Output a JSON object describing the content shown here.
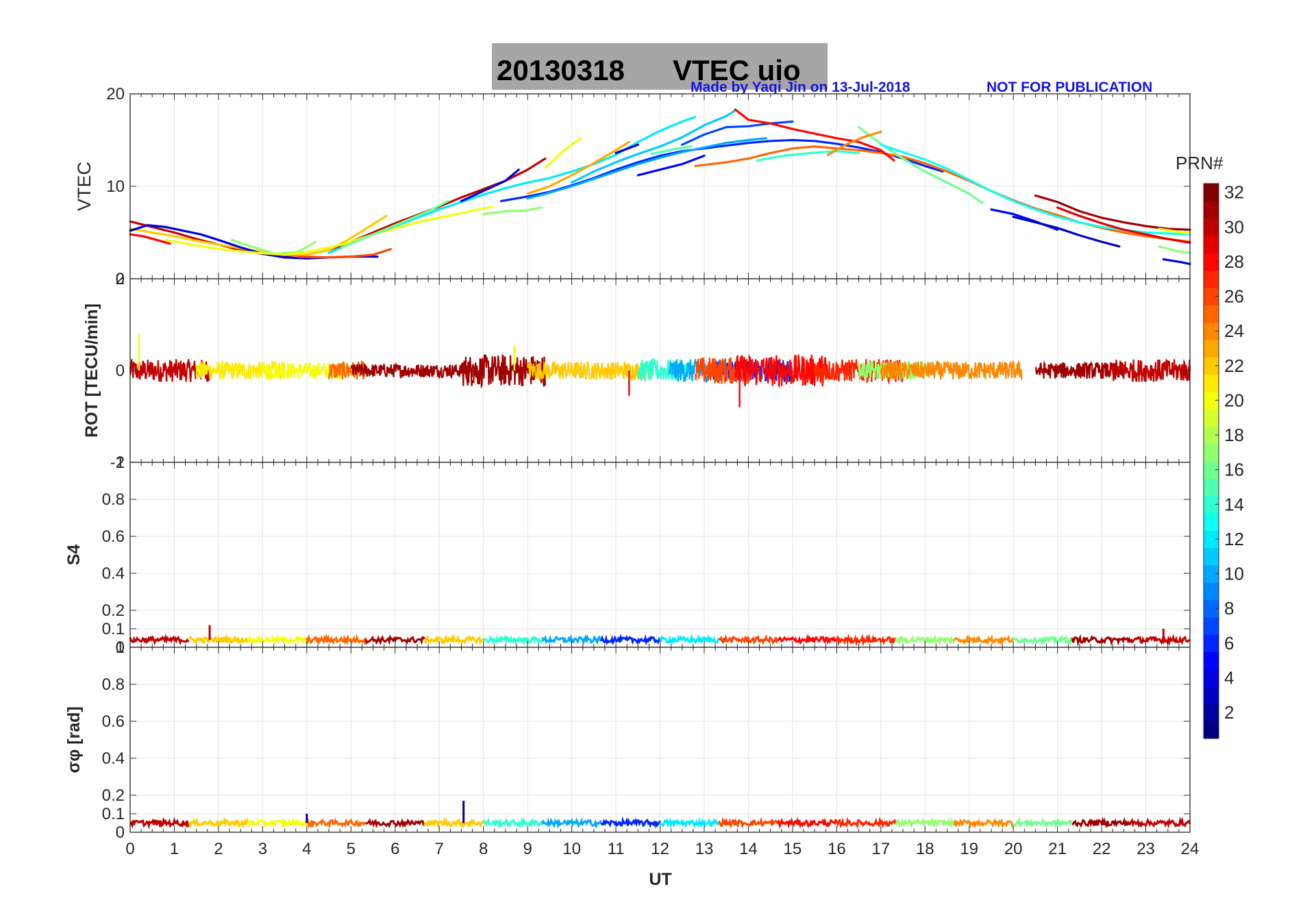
{
  "title": {
    "date": "20130318",
    "text": "VTEC  uio",
    "box_color": "#a6a6a6"
  },
  "credit": {
    "made_by": "Made by Yaqi Jin on 13-Jul-2018",
    "notice": "NOT FOR PUBLICATION",
    "color": "#1515e0"
  },
  "x_axis": {
    "label": "UT",
    "min": 0,
    "max": 24,
    "ticks": [
      "0",
      "1",
      "2",
      "3",
      "4",
      "5",
      "6",
      "7",
      "8",
      "9",
      "10",
      "11",
      "12",
      "13",
      "14",
      "15",
      "16",
      "17",
      "18",
      "19",
      "20",
      "21",
      "22",
      "23",
      "24"
    ]
  },
  "colorbar": {
    "title": "PRN#",
    "min": 1,
    "max": 32,
    "ticks": [
      "2",
      "4",
      "6",
      "8",
      "10",
      "12",
      "14",
      "16",
      "18",
      "20",
      "22",
      "24",
      "26",
      "28",
      "30",
      "32"
    ],
    "colormap": "jet"
  },
  "chart_data": [
    {
      "type": "line",
      "panel": "vtec",
      "ylabel": "VTEC",
      "ylim": [
        0,
        20
      ],
      "yticks": [
        "0",
        "10",
        "20"
      ],
      "grid": true,
      "series": [
        {
          "prn": 30,
          "x": [
            0.0,
            0.5,
            1.0,
            1.5,
            2.0,
            2.5,
            3.0,
            3.5,
            4.0,
            4.5,
            5.0,
            5.5,
            6.0,
            6.5,
            7.0,
            7.5,
            8.0,
            8.5,
            9.0,
            9.4
          ],
          "y": [
            6.2,
            5.6,
            5.0,
            4.3,
            3.7,
            3.1,
            2.7,
            2.5,
            2.6,
            3.1,
            4.0,
            5.0,
            6.0,
            6.9,
            7.8,
            8.8,
            9.7,
            10.6,
            11.8,
            13.0
          ]
        },
        {
          "prn": 22,
          "x": [
            0.0,
            0.5,
            1.0,
            1.5,
            2.0,
            2.5,
            3.0,
            3.5,
            4.0,
            4.5,
            5.0,
            5.5,
            5.8
          ],
          "y": [
            5.4,
            5.0,
            4.6,
            4.1,
            3.7,
            3.3,
            2.9,
            2.6,
            2.6,
            3.1,
            4.4,
            5.9,
            6.8
          ]
        },
        {
          "prn": 28,
          "x": [
            0.0,
            0.3,
            0.6,
            0.9
          ],
          "y": [
            4.8,
            4.6,
            4.2,
            3.8
          ]
        },
        {
          "prn": 4,
          "x": [
            0.0,
            0.4,
            0.8,
            1.2,
            1.6,
            2.0,
            2.5,
            3.0,
            3.5,
            4.0,
            4.5,
            5.0,
            5.6
          ],
          "y": [
            5.2,
            5.8,
            5.6,
            5.2,
            4.8,
            4.2,
            3.4,
            2.7,
            2.3,
            2.2,
            2.3,
            2.4,
            2.4
          ]
        },
        {
          "prn": 17,
          "x": [
            2.3,
            2.8,
            3.3,
            3.8,
            4.2
          ],
          "y": [
            4.2,
            3.4,
            2.7,
            2.9,
            4.0
          ]
        },
        {
          "prn": 26,
          "x": [
            3.8,
            4.5,
            5.0,
            5.5,
            5.9
          ],
          "y": [
            2.4,
            2.3,
            2.4,
            2.6,
            3.2
          ]
        },
        {
          "prn": 20,
          "x": [
            0.8,
            1.5,
            2.2,
            2.9,
            3.5,
            4.0,
            4.8,
            5.5,
            6.5,
            7.5,
            8.2
          ],
          "y": [
            4.2,
            3.6,
            3.1,
            2.8,
            2.6,
            2.9,
            3.7,
            4.8,
            6.1,
            7.1,
            7.8
          ]
        },
        {
          "prn": 12,
          "x": [
            4.5,
            5.0,
            5.5,
            6.0,
            6.5,
            7.0,
            7.5,
            8.0,
            8.5,
            9.0,
            9.5,
            10.0,
            10.5,
            11.0,
            11.5,
            12.0,
            12.5,
            12.8
          ],
          "y": [
            2.8,
            3.8,
            4.8,
            5.7,
            6.6,
            7.5,
            8.3,
            9.1,
            9.8,
            10.4,
            10.9,
            11.6,
            12.4,
            13.4,
            14.8,
            16.0,
            17.0,
            17.5
          ]
        },
        {
          "prn": 16,
          "x": [
            4.8,
            5.3,
            5.8,
            6.3,
            6.8,
            7.2
          ],
          "y": [
            3.4,
            4.4,
            5.4,
            6.4,
            7.4,
            8.4
          ]
        },
        {
          "prn": 4,
          "x": [
            7.5,
            8.0,
            8.5,
            8.8
          ],
          "y": [
            8.4,
            9.5,
            10.6,
            11.8
          ]
        },
        {
          "prn": 6,
          "x": [
            8.4,
            9.0,
            9.5,
            10.0,
            10.5,
            11.0,
            11.5,
            12.0,
            12.5,
            13.0,
            13.5,
            14.0,
            14.5,
            15.0,
            15.5,
            16.0,
            16.5,
            17.0,
            17.5,
            18.0,
            18.4
          ],
          "y": [
            8.4,
            8.9,
            9.4,
            10.1,
            10.9,
            11.8,
            12.6,
            13.3,
            13.8,
            14.1,
            14.4,
            14.7,
            14.9,
            15.0,
            14.9,
            14.6,
            14.2,
            13.7,
            13.0,
            12.2,
            11.6
          ]
        },
        {
          "prn": 17,
          "x": [
            8.0,
            8.5,
            9.0,
            9.3
          ],
          "y": [
            7.0,
            7.3,
            7.4,
            7.7
          ]
        },
        {
          "prn": 20,
          "x": [
            9.4,
            9.8,
            10.2
          ],
          "y": [
            12.0,
            13.8,
            15.2
          ]
        },
        {
          "prn": 23,
          "x": [
            9.0,
            9.5,
            10.0,
            10.5,
            11.0,
            11.3
          ],
          "y": [
            9.2,
            10.0,
            11.2,
            12.5,
            13.9,
            14.8
          ]
        },
        {
          "prn": 10,
          "x": [
            9.0,
            9.5,
            10.0,
            10.5,
            11.0,
            11.5,
            12.0,
            12.5,
            13.0,
            13.5,
            14.0,
            14.4
          ],
          "y": [
            8.7,
            9.3,
            10.0,
            10.8,
            11.6,
            12.4,
            13.1,
            13.7,
            14.2,
            14.7,
            15.0,
            15.2
          ]
        },
        {
          "prn": 11,
          "x": [
            10.0,
            10.5,
            11.0,
            11.5,
            12.0,
            12.5,
            13.0,
            13.5,
            13.7
          ],
          "y": [
            10.4,
            11.6,
            12.6,
            13.5,
            14.3,
            15.3,
            16.6,
            17.6,
            18.2
          ]
        },
        {
          "prn": 3,
          "x": [
            11.0,
            11.5
          ],
          "y": [
            13.6,
            14.5
          ]
        },
        {
          "prn": 5,
          "x": [
            11.5,
            12.0,
            12.5,
            13.0
          ],
          "y": [
            11.2,
            11.8,
            12.4,
            13.3
          ]
        },
        {
          "prn": 15,
          "x": [
            11.8,
            12.3,
            12.7
          ],
          "y": [
            13.5,
            14.0,
            14.3
          ]
        },
        {
          "prn": 7,
          "x": [
            12.5,
            13.0,
            13.5,
            14.0,
            14.5,
            15.0
          ],
          "y": [
            14.5,
            15.6,
            16.4,
            16.5,
            16.8,
            17.0
          ]
        },
        {
          "prn": 25,
          "x": [
            12.8,
            13.5,
            14.0,
            14.5,
            15.0,
            15.5,
            16.0,
            16.5,
            17.0,
            17.5,
            18.0,
            18.5,
            19.0,
            19.5,
            20.0,
            20.5,
            21.0,
            21.5,
            22.0,
            22.5,
            23.0,
            23.5,
            24.0
          ],
          "y": [
            12.2,
            12.6,
            13.0,
            13.6,
            14.1,
            14.3,
            14.1,
            13.9,
            13.6,
            13.2,
            12.5,
            11.6,
            10.6,
            9.5,
            8.5,
            7.6,
            6.9,
            6.1,
            5.5,
            5.0,
            4.6,
            4.3,
            4.0
          ]
        },
        {
          "prn": 28,
          "x": [
            13.7,
            14.0,
            14.5,
            15.0,
            15.5,
            16.0,
            16.5,
            17.0,
            17.3
          ],
          "y": [
            18.3,
            17.2,
            16.8,
            16.2,
            15.7,
            15.2,
            14.8,
            13.9,
            12.8
          ]
        },
        {
          "prn": 14,
          "x": [
            14.2,
            14.8,
            15.4,
            16.0,
            16.5
          ],
          "y": [
            12.8,
            13.3,
            13.6,
            13.8,
            13.6
          ]
        },
        {
          "prn": 16,
          "x": [
            16.5,
            17.0,
            17.5,
            18.0,
            18.5,
            19.0,
            19.3
          ],
          "y": [
            16.4,
            14.6,
            13.0,
            11.6,
            10.4,
            9.2,
            8.2
          ]
        },
        {
          "prn": 24,
          "x": [
            15.8,
            16.2,
            16.6,
            17.0
          ],
          "y": [
            13.4,
            14.5,
            15.3,
            15.9
          ]
        },
        {
          "prn": 13,
          "x": [
            17.0,
            17.5,
            18.0,
            18.5,
            19.0,
            19.5,
            20.0,
            20.5,
            21.0,
            21.5,
            22.0,
            22.5,
            23.0,
            23.5,
            24.0
          ],
          "y": [
            14.5,
            13.7,
            12.9,
            11.9,
            10.7,
            9.5,
            8.4,
            7.5,
            6.7,
            6.1,
            5.6,
            5.3,
            5.0,
            4.9,
            4.8
          ]
        },
        {
          "prn": 5,
          "x": [
            19.5,
            20.0,
            20.5,
            21.0
          ],
          "y": [
            7.5,
            7.0,
            6.2,
            5.3
          ]
        },
        {
          "prn": 3,
          "x": [
            20.0,
            20.5,
            21.0,
            21.5,
            22.0,
            22.4
          ],
          "y": [
            6.7,
            6.1,
            5.5,
            4.7,
            4.0,
            3.5
          ]
        },
        {
          "prn": 31,
          "x": [
            20.5,
            21.0,
            21.5,
            22.0,
            22.5,
            23.0,
            23.5,
            24.0
          ],
          "y": [
            9.0,
            8.3,
            7.3,
            6.6,
            6.1,
            5.7,
            5.4,
            5.3
          ]
        },
        {
          "prn": 29,
          "x": [
            21.0,
            21.5,
            22.0,
            22.5,
            23.0,
            23.5,
            24.0
          ],
          "y": [
            7.7,
            6.8,
            6.0,
            5.3,
            4.8,
            4.3,
            3.9
          ]
        },
        {
          "prn": 20,
          "x": [
            23.3,
            23.7,
            24.0
          ],
          "y": [
            5.4,
            5.1,
            4.9
          ]
        },
        {
          "prn": 17,
          "x": [
            23.3,
            23.7,
            24.0
          ],
          "y": [
            3.5,
            3.0,
            2.8
          ]
        },
        {
          "prn": 4,
          "x": [
            23.4,
            23.8,
            24.0
          ],
          "y": [
            2.1,
            1.8,
            1.6
          ]
        }
      ]
    },
    {
      "type": "scatter",
      "panel": "rot",
      "ylabel": "ROT [TECU/min]",
      "ylim": [
        -2,
        2
      ],
      "yticks": [
        "-2",
        "0",
        "2"
      ],
      "grid": true,
      "baseline": 0,
      "series": [
        {
          "prn": 30,
          "x_range": [
            0.0,
            1.8
          ],
          "amplitude": 0.25
        },
        {
          "prn": 21,
          "x_range": [
            1.5,
            3.5
          ],
          "amplitude": 0.2
        },
        {
          "prn": 20,
          "x_range": [
            3.0,
            5.0
          ],
          "amplitude": 0.18
        },
        {
          "prn": 25,
          "x_range": [
            4.5,
            5.3
          ],
          "amplitude": 0.2
        },
        {
          "prn": 31,
          "x_range": [
            5.0,
            7.8
          ],
          "amplitude": 0.15
        },
        {
          "prn": 31,
          "x_range": [
            7.5,
            9.4
          ],
          "amplitude": 0.35
        },
        {
          "prn": 22,
          "x_range": [
            9.0,
            11.8
          ],
          "amplitude": 0.2
        },
        {
          "prn": 14,
          "x_range": [
            11.5,
            12.8
          ],
          "amplitude": 0.25
        },
        {
          "prn": 10,
          "x_range": [
            12.2,
            13.5
          ],
          "amplitude": 0.25
        },
        {
          "prn": 6,
          "x_range": [
            13.2,
            15.0
          ],
          "amplitude": 0.25
        },
        {
          "prn": 26,
          "x_range": [
            12.8,
            14.0
          ],
          "amplitude": 0.3
        },
        {
          "prn": 28,
          "x_range": [
            13.7,
            15.8
          ],
          "amplitude": 0.35
        },
        {
          "prn": 27,
          "x_range": [
            15.5,
            17.5
          ],
          "amplitude": 0.25
        },
        {
          "prn": 17,
          "x_range": [
            16.5,
            18.2
          ],
          "amplitude": 0.2
        },
        {
          "prn": 24,
          "x_range": [
            17.0,
            20.2
          ],
          "amplitude": 0.2
        },
        {
          "prn": 31,
          "x_range": [
            20.5,
            22.5
          ],
          "amplitude": 0.18
        },
        {
          "prn": 30,
          "x_range": [
            22.2,
            24.0
          ],
          "amplitude": 0.25
        }
      ],
      "spikes": [
        {
          "x": 0.2,
          "y": 0.8
        },
        {
          "x": 13.8,
          "y": -0.8
        },
        {
          "x": 8.7,
          "y": 0.55
        },
        {
          "x": 11.3,
          "y": -0.55
        }
      ]
    },
    {
      "type": "scatter",
      "panel": "s4",
      "ylabel": "S4",
      "ylim": [
        0,
        1
      ],
      "yticks": [
        "0",
        "0.1",
        "0.2",
        "0.4",
        "0.6",
        "0.8",
        "1"
      ],
      "grid": true,
      "baseline": 0.04,
      "spikes": [
        {
          "x": 1.8,
          "y": 0.12
        },
        {
          "x": 23.4,
          "y": 0.1
        }
      ]
    },
    {
      "type": "scatter",
      "panel": "sigma_phi",
      "ylabel": "σφ [rad]",
      "ylim": [
        0,
        1
      ],
      "yticks": [
        "0",
        "0.1",
        "0.2",
        "0.4",
        "0.6",
        "0.8",
        "1"
      ],
      "grid": true,
      "baseline": 0.05,
      "spikes": [
        {
          "x": 7.55,
          "y": 0.17
        },
        {
          "x": 4.0,
          "y": 0.1
        }
      ]
    }
  ]
}
